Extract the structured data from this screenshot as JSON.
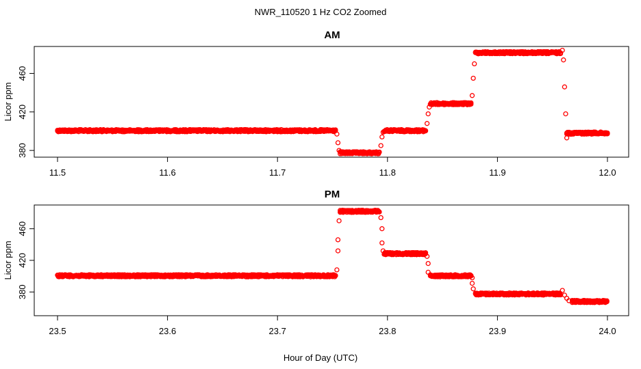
{
  "figure": {
    "title": "NWR_110520  1 Hz CO2 Zoomed",
    "xlabel": "Hour of Day (UTC)"
  },
  "chart_data": [
    {
      "type": "scatter",
      "title": "AM",
      "xlabel": "Hour of Day (UTC)",
      "ylabel": "Licor ppm",
      "xlim": [
        11.5,
        12.0
      ],
      "ylim": [
        373,
        488
      ],
      "x_ticks": [
        11.5,
        11.6,
        11.7,
        11.8,
        11.9,
        12.0
      ],
      "x_tick_labels": [
        "11.5",
        "11.6",
        "11.7",
        "11.8",
        "11.9",
        "12.0"
      ],
      "y_ticks": [
        380,
        420,
        460
      ],
      "y_tick_labels": [
        "380",
        "420",
        "460"
      ],
      "marker": "open-circle",
      "color": "#ff0000",
      "plateaus": [
        {
          "x_start": 11.5,
          "x_end": 11.753,
          "y": 400.5
        },
        {
          "x_start": 11.757,
          "x_end": 11.793,
          "y": 377.5
        },
        {
          "x_start": 11.797,
          "x_end": 11.835,
          "y": 400.5
        },
        {
          "x_start": 11.839,
          "x_end": 11.876,
          "y": 428.5
        },
        {
          "x_start": 11.88,
          "x_end": 11.958,
          "y": 481.5
        },
        {
          "x_start": 11.963,
          "x_end": 12.0,
          "y": 398.0
        }
      ],
      "transition_points": [
        {
          "x": 11.754,
          "y": 397
        },
        {
          "x": 11.755,
          "y": 388
        },
        {
          "x": 11.756,
          "y": 380
        },
        {
          "x": 11.794,
          "y": 385
        },
        {
          "x": 11.795,
          "y": 394
        },
        {
          "x": 11.796,
          "y": 399
        },
        {
          "x": 11.836,
          "y": 408
        },
        {
          "x": 11.837,
          "y": 418
        },
        {
          "x": 11.838,
          "y": 425
        },
        {
          "x": 11.877,
          "y": 437
        },
        {
          "x": 11.878,
          "y": 455
        },
        {
          "x": 11.879,
          "y": 470
        },
        {
          "x": 11.959,
          "y": 484
        },
        {
          "x": 11.96,
          "y": 474
        },
        {
          "x": 11.961,
          "y": 446
        },
        {
          "x": 11.962,
          "y": 418
        },
        {
          "x": 11.963,
          "y": 393
        }
      ]
    },
    {
      "type": "scatter",
      "title": "PM",
      "xlabel": "Hour of Day (UTC)",
      "ylabel": "Licor ppm",
      "xlim": [
        23.5,
        24.0
      ],
      "ylim": [
        350,
        490
      ],
      "x_ticks": [
        23.5,
        23.6,
        23.7,
        23.8,
        23.9,
        24.0
      ],
      "x_tick_labels": [
        "23.5",
        "23.6",
        "23.7",
        "23.8",
        "23.9",
        "24.0"
      ],
      "y_ticks": [
        380,
        420,
        460
      ],
      "y_tick_labels": [
        "380",
        "420",
        "460"
      ],
      "marker": "open-circle",
      "color": "#ff0000",
      "plateaus": [
        {
          "x_start": 23.5,
          "x_end": 23.753,
          "y": 400.5
        },
        {
          "x_start": 23.757,
          "x_end": 23.793,
          "y": 482.0
        },
        {
          "x_start": 23.797,
          "x_end": 23.835,
          "y": 428.5
        },
        {
          "x_start": 23.839,
          "x_end": 23.876,
          "y": 400.5
        },
        {
          "x_start": 23.88,
          "x_end": 23.958,
          "y": 377.5
        },
        {
          "x_start": 23.968,
          "x_end": 24.0,
          "y": 368.0
        }
      ],
      "transition_points": [
        {
          "x": 23.754,
          "y": 408
        },
        {
          "x": 23.755,
          "y": 432
        },
        {
          "x": 23.755,
          "y": 446
        },
        {
          "x": 23.756,
          "y": 470
        },
        {
          "x": 23.794,
          "y": 474
        },
        {
          "x": 23.795,
          "y": 460
        },
        {
          "x": 23.795,
          "y": 442
        },
        {
          "x": 23.796,
          "y": 432
        },
        {
          "x": 23.836,
          "y": 425
        },
        {
          "x": 23.837,
          "y": 416
        },
        {
          "x": 23.837,
          "y": 405
        },
        {
          "x": 23.877,
          "y": 398
        },
        {
          "x": 23.877,
          "y": 391
        },
        {
          "x": 23.878,
          "y": 384
        },
        {
          "x": 23.959,
          "y": 382
        },
        {
          "x": 23.961,
          "y": 376
        },
        {
          "x": 23.963,
          "y": 372
        },
        {
          "x": 23.965,
          "y": 369
        }
      ]
    }
  ]
}
